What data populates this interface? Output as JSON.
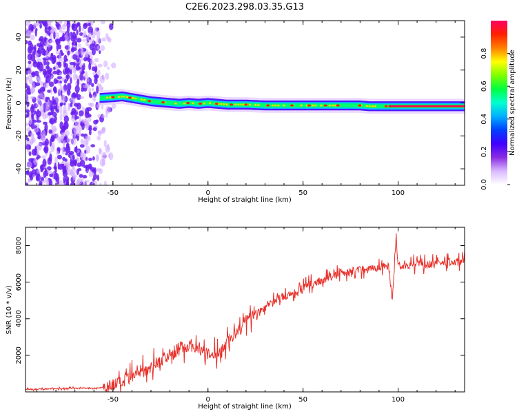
{
  "title": "C2E6.2023.298.03.35.G13",
  "colors": {
    "snr_line": "#e8302a",
    "cloud": "#7a2cf0",
    "axis": "#000000"
  },
  "chart_data": [
    {
      "type": "heatmap",
      "name": "spectrogram",
      "xlabel": "Height of straight line (km)",
      "ylabel": "Frequency (Hz)",
      "xlim": [
        -96,
        135
      ],
      "ylim": [
        -50,
        50
      ],
      "xticks": [
        -50,
        0,
        50,
        100
      ],
      "yticks": [
        -40,
        -20,
        0,
        20,
        40
      ],
      "grid": false,
      "ridge": {
        "description_free": true,
        "x": [
          -57,
          -50,
          -45,
          -40,
          -35,
          -30,
          -25,
          -20,
          -15,
          -10,
          -5,
          0,
          5,
          10,
          15,
          20,
          30,
          40,
          50,
          60,
          70,
          80,
          85,
          90,
          95,
          100,
          110,
          120,
          135
        ],
        "y": [
          3,
          3.5,
          4,
          3,
          2,
          1,
          0.5,
          0,
          -0.5,
          0,
          -0.5,
          0,
          -0.5,
          -1,
          -1,
          -1,
          -1.5,
          -1.5,
          -1.5,
          -1.5,
          -1.5,
          -1.5,
          -2,
          -2,
          -2,
          -2,
          -2,
          -2,
          -2
        ]
      },
      "colorbar": {
        "label": "Normalized spectral amplitude",
        "range": [
          0,
          1
        ],
        "ticks": [
          "0.0",
          "0.2",
          "0.4",
          "0.6",
          "0.8"
        ],
        "colormap": [
          "#ffffff",
          "#d9b8ff",
          "#8a2be2",
          "#3f00ff",
          "#0040ff",
          "#00b0ff",
          "#00ffd0",
          "#00ff40",
          "#7fff00",
          "#ffff00",
          "#ff8000",
          "#ff2000",
          "#ff0060"
        ]
      }
    },
    {
      "type": "line",
      "name": "snr",
      "xlabel": "Height of straight line (km)",
      "ylabel": "SNR (10 * v/v)",
      "xlim": [
        -96,
        135
      ],
      "ylim": [
        0,
        9000
      ],
      "xticks": [
        -50,
        0,
        50,
        100
      ],
      "yticks": [
        2000,
        4000,
        6000,
        8000
      ],
      "grid": false,
      "x": [
        -96,
        -90,
        -80,
        -70,
        -60,
        -55,
        -50,
        -45,
        -40,
        -35,
        -30,
        -25,
        -20,
        -15,
        -10,
        -5,
        0,
        5,
        10,
        15,
        20,
        25,
        30,
        35,
        40,
        45,
        50,
        55,
        60,
        65,
        70,
        75,
        80,
        85,
        90,
        95,
        97,
        99,
        100,
        105,
        110,
        115,
        120,
        125,
        130,
        135
      ],
      "y": [
        150,
        150,
        180,
        200,
        200,
        250,
        400,
        500,
        800,
        1100,
        1400,
        1700,
        2000,
        2400,
        2600,
        2400,
        2000,
        2100,
        2700,
        3200,
        3900,
        4200,
        4600,
        5000,
        5200,
        5400,
        5700,
        5900,
        6100,
        6300,
        6500,
        6600,
        6700,
        6750,
        6800,
        6900,
        5000,
        8500,
        6900,
        6900,
        7000,
        6950,
        7000,
        7050,
        7100,
        7200
      ]
    }
  ]
}
